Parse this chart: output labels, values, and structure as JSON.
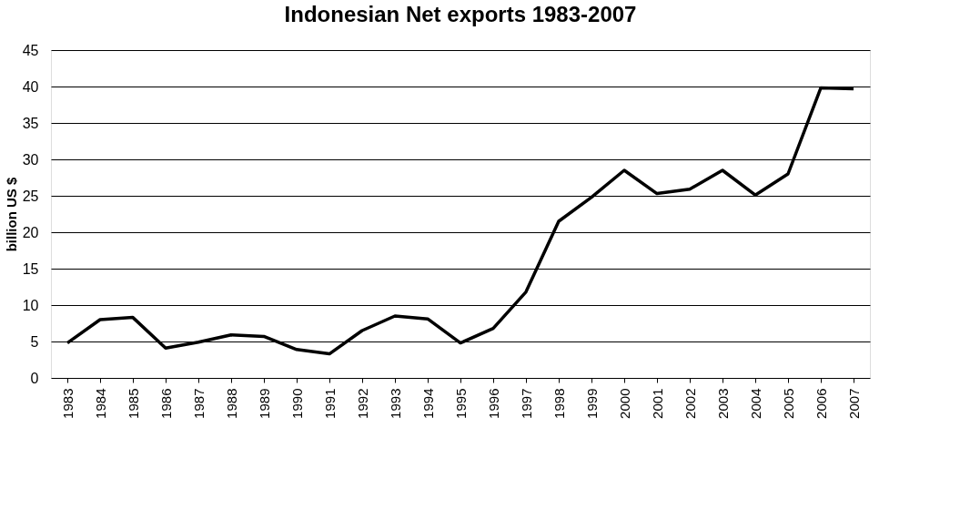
{
  "chart_data": {
    "type": "line",
    "title": "Indonesian Net exports 1983-2007",
    "ylabel": "billion US $",
    "categories": [
      "1983",
      "1984",
      "1985",
      "1986",
      "1987",
      "1988",
      "1989",
      "1990",
      "1991",
      "1992",
      "1993",
      "1994",
      "1995",
      "1996",
      "1997",
      "1998",
      "1999",
      "2000",
      "2001",
      "2002",
      "2003",
      "2004",
      "2005",
      "2006",
      "2007"
    ],
    "series": [
      {
        "color": "#000000",
        "values": [
          4.8,
          8.0,
          8.3,
          4.1,
          4.9,
          5.9,
          5.7,
          3.9,
          3.3,
          6.5,
          8.5,
          8.1,
          4.8,
          6.8,
          11.8,
          21.5,
          24.8,
          28.5,
          25.3,
          25.9,
          28.5,
          25.1,
          28.0,
          39.8,
          39.7
        ]
      }
    ],
    "ylim": [
      0,
      45
    ],
    "yticks": [
      0,
      5,
      10,
      15,
      20,
      25,
      30,
      35,
      40,
      45
    ],
    "grid": "y",
    "legend": false,
    "marker": "none",
    "line_style": "solid"
  }
}
